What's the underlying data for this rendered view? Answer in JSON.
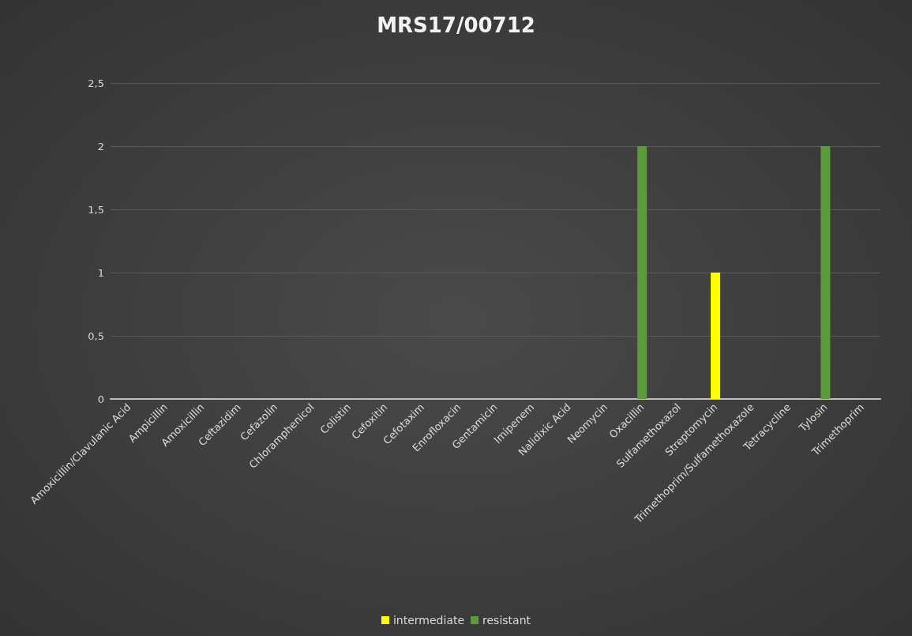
{
  "chart_data": {
    "type": "bar",
    "title": "MRS17/00712",
    "categories": [
      "Amoxicillin/Clavulanic Acid",
      "Ampicillin",
      "Amoxicillin",
      "Ceftazidim",
      "Cefazolin",
      "Chloramphenicol",
      "Colistin",
      "Cefoxitin",
      "Cefotaxim",
      "Enrofloxacin",
      "Gentamicin",
      "Imipenem",
      "Nalidixic Acid",
      "Neomycin",
      "Oxacillin",
      "Sulfamethoxazol",
      "Streptomycin",
      "Trimethoprim/Sulfamethoxazole",
      "Tetracycline",
      "Tylosin",
      "Trimethoprim"
    ],
    "series": [
      {
        "name": "intermediate",
        "color": "#ffff00",
        "values": [
          0,
          0,
          0,
          0,
          0,
          0,
          0,
          0,
          0,
          0,
          0,
          0,
          0,
          0,
          0,
          0,
          1,
          0,
          0,
          0,
          0
        ]
      },
      {
        "name": "resistant",
        "color": "#5b9b3c",
        "values": [
          0,
          0,
          0,
          0,
          0,
          0,
          0,
          0,
          0,
          0,
          0,
          0,
          0,
          0,
          2,
          0,
          0,
          0,
          0,
          2,
          0
        ]
      }
    ],
    "ylim": [
      0,
      2.5
    ],
    "yticks": [
      0,
      {
        "value": 0.5,
        "label": "0,5"
      },
      1,
      {
        "value": 1.5,
        "label": "1,5"
      },
      2,
      {
        "value": 2.5,
        "label": "2,5"
      }
    ],
    "grid": "y",
    "legend": "bottom"
  }
}
